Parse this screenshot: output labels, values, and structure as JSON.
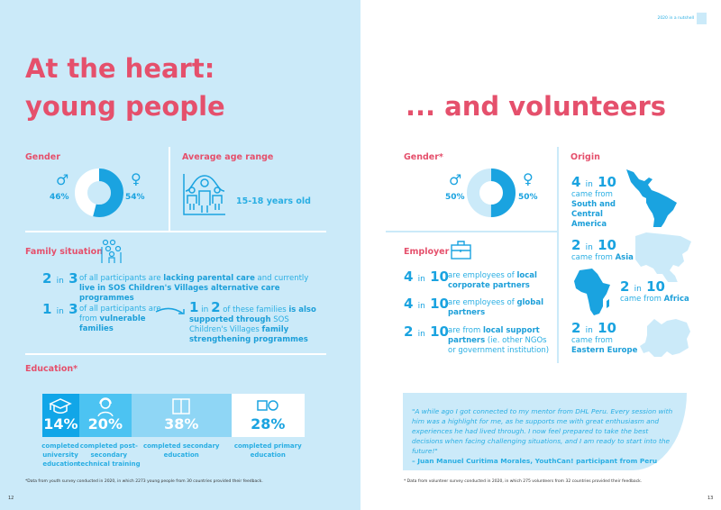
{
  "header": {
    "running_title": "2020 in a nutshell"
  },
  "left": {
    "title_line1": "At the heart:",
    "title_line2": "young people",
    "gender": {
      "label": "Gender",
      "male_pct": "46%",
      "female_pct": "54%",
      "male_value": 46,
      "female_value": 54
    },
    "age": {
      "label": "Average age range",
      "value": "15-18 years old"
    },
    "family": {
      "label": "Family situation",
      "row1": {
        "stat_a": "2",
        "stat_in": "in",
        "stat_b": "3",
        "text1": "of all participants are ",
        "bold1": "lacking parental care",
        "text2": " and currently ",
        "bold2": "live in SOS Children's Villages alternative care programmes"
      },
      "row2": {
        "stat_a": "1",
        "stat_in": "in",
        "stat_b": "3",
        "text1": "of all participants are from ",
        "bold1": "vulnerable families"
      },
      "row3": {
        "stat_a": "1",
        "stat_in": "in",
        "stat_b": "2",
        "text1": " of these families ",
        "bold1": "is also supported through",
        "text2": " SOS Children's Villages ",
        "bold2": "family strengthening programmes"
      }
    },
    "education": {
      "label": "Education*",
      "items": [
        {
          "pct": "14%",
          "value": 14,
          "text": "completed university education",
          "icon": "graduation-cap-icon",
          "color": "#11a6e8"
        },
        {
          "pct": "20%",
          "value": 20,
          "text": "completed post-secondary technical training",
          "icon": "headset-person-icon",
          "color": "#4cc3f2"
        },
        {
          "pct": "38%",
          "value": 38,
          "text": "completed secondary education",
          "icon": "book-icon",
          "color": "#8fd6f5"
        },
        {
          "pct": "28%",
          "value": 28,
          "text": "completed primary education",
          "icon": "square-circle-icon",
          "color": "#ffffff"
        }
      ]
    },
    "footnote": "*Data from youth survey conducted in 2020, in which 2273 young people from 30 countries provided their feedback.",
    "page_number": "12"
  },
  "right": {
    "title": "... and volunteers",
    "gender": {
      "label": "Gender*",
      "male_pct": "50%",
      "female_pct": "50%",
      "male_value": 50,
      "female_value": 50
    },
    "employer": {
      "label": "Employer",
      "rows": [
        {
          "stat_a": "4",
          "stat_in": "in",
          "stat_b": "10",
          "text1": "are employees of ",
          "bold1": "local corporate partners",
          "text2": ""
        },
        {
          "stat_a": "4",
          "stat_in": "in",
          "stat_b": "10",
          "text1": "are employees of ",
          "bold1": "global partners",
          "text2": ""
        },
        {
          "stat_a": "2",
          "stat_in": "in",
          "stat_b": "10",
          "text1": "are from ",
          "bold1": "local support partners",
          "text2": " (ie. other NGOs or government institution)"
        }
      ]
    },
    "origin": {
      "label": "Origin",
      "regions": [
        {
          "stat_a": "4",
          "stat_in": "in",
          "stat_b": "10",
          "text": "came from",
          "region": "South and Central America"
        },
        {
          "stat_a": "2",
          "stat_in": "in",
          "stat_b": "10",
          "text": "came from",
          "region": "Asia"
        },
        {
          "stat_a": "2",
          "stat_in": "in",
          "stat_b": "10",
          "text": "came from",
          "region": "Africa"
        },
        {
          "stat_a": "2",
          "stat_in": "in",
          "stat_b": "10",
          "text": "came from",
          "region": "Eastern Europe"
        }
      ]
    },
    "quote": {
      "text": "\"A while ago I got connected to my mentor from DHL Peru. Every session with him was a highlight for me, as he supports me with great enthusiasm and experiences he had lived through. I now feel prepared to take the best decisions when facing challenging situations, and I am ready to start into the future!\"",
      "author": "– Juan Manuel Curitima Morales, YouthCan! participant from Peru"
    },
    "footnote": "* Data from volunteer survey conducted in 2020, in which 275 volunteers from 32 countries provided their feedback.",
    "page_number": "13"
  },
  "colors": {
    "accent": "#1aa3e0",
    "heading": "#e5506c",
    "left_bg": "#cbeaf9"
  }
}
